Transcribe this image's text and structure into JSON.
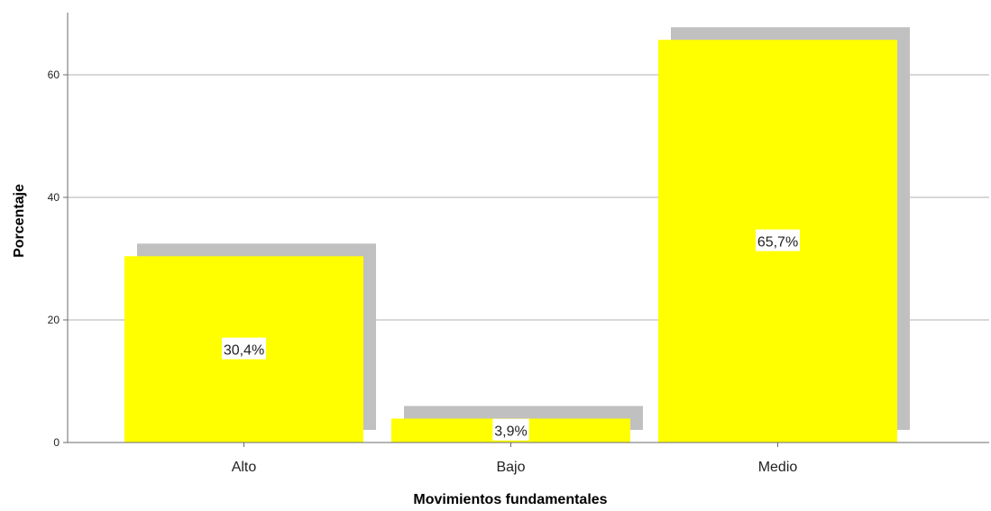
{
  "chart_data": {
    "type": "bar",
    "categories": [
      "Alto",
      "Bajo",
      "Medio"
    ],
    "values": [
      30.4,
      3.9,
      65.7
    ],
    "data_labels": [
      "30,4%",
      "3,9%",
      "65,7%"
    ],
    "xlabel": "Movimientos fundamentales",
    "ylabel": "Porcentaje",
    "ylim": [
      0,
      70
    ],
    "yticks": [
      0,
      20,
      40,
      60
    ],
    "ytick_labels": [
      "0",
      "20",
      "40",
      "60"
    ],
    "grid": true,
    "legend": "none",
    "colors": {
      "bar": "#ffff00",
      "shadow": "#c0c0c0",
      "grid": "#b0b0b0",
      "axis": "#6b6b6b"
    }
  }
}
